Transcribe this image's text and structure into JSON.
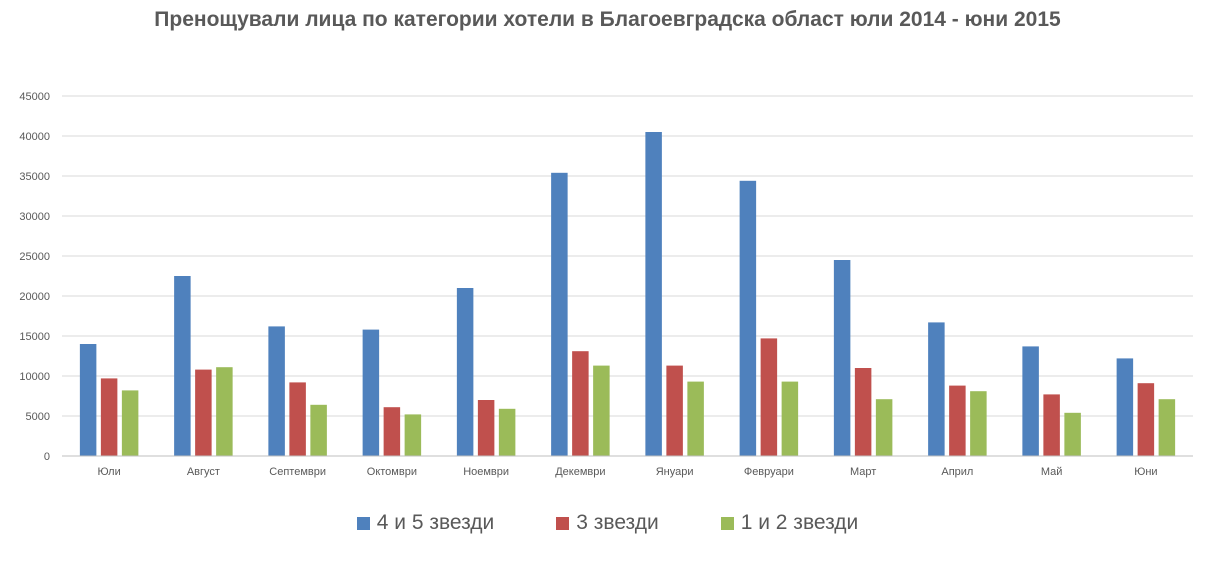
{
  "chart_data": {
    "type": "bar",
    "title": "Пренощували лица по категории хотели в Благоевградска област юли 2014 - юни 2015",
    "categories": [
      "Юли",
      "Август",
      "Септември",
      "Октомври",
      "Ноември",
      "Декември",
      "Януари",
      "Февруари",
      "Март",
      "Април",
      "Май",
      "Юни"
    ],
    "series": [
      {
        "name": "4 и 5 звезди",
        "color": "#4F81BD",
        "values": [
          14000,
          22500,
          16200,
          15800,
          21000,
          35400,
          40500,
          34400,
          24500,
          16700,
          13700,
          12200
        ]
      },
      {
        "name": "3 звезди",
        "color": "#C0504D",
        "values": [
          9700,
          10800,
          9200,
          6100,
          7000,
          13100,
          11300,
          14700,
          11000,
          8800,
          7700,
          9100
        ]
      },
      {
        "name": "1 и 2 звезди",
        "color": "#9BBB59",
        "values": [
          8200,
          11100,
          6400,
          5200,
          5900,
          11300,
          9300,
          9300,
          7100,
          8100,
          5400,
          7100
        ]
      }
    ],
    "ylim": [
      0,
      45000
    ],
    "yticks": [
      0,
      5000,
      10000,
      15000,
      20000,
      25000,
      30000,
      35000,
      40000,
      45000
    ],
    "grid": true,
    "legend_position": "bottom",
    "xlabel": "",
    "ylabel": ""
  }
}
